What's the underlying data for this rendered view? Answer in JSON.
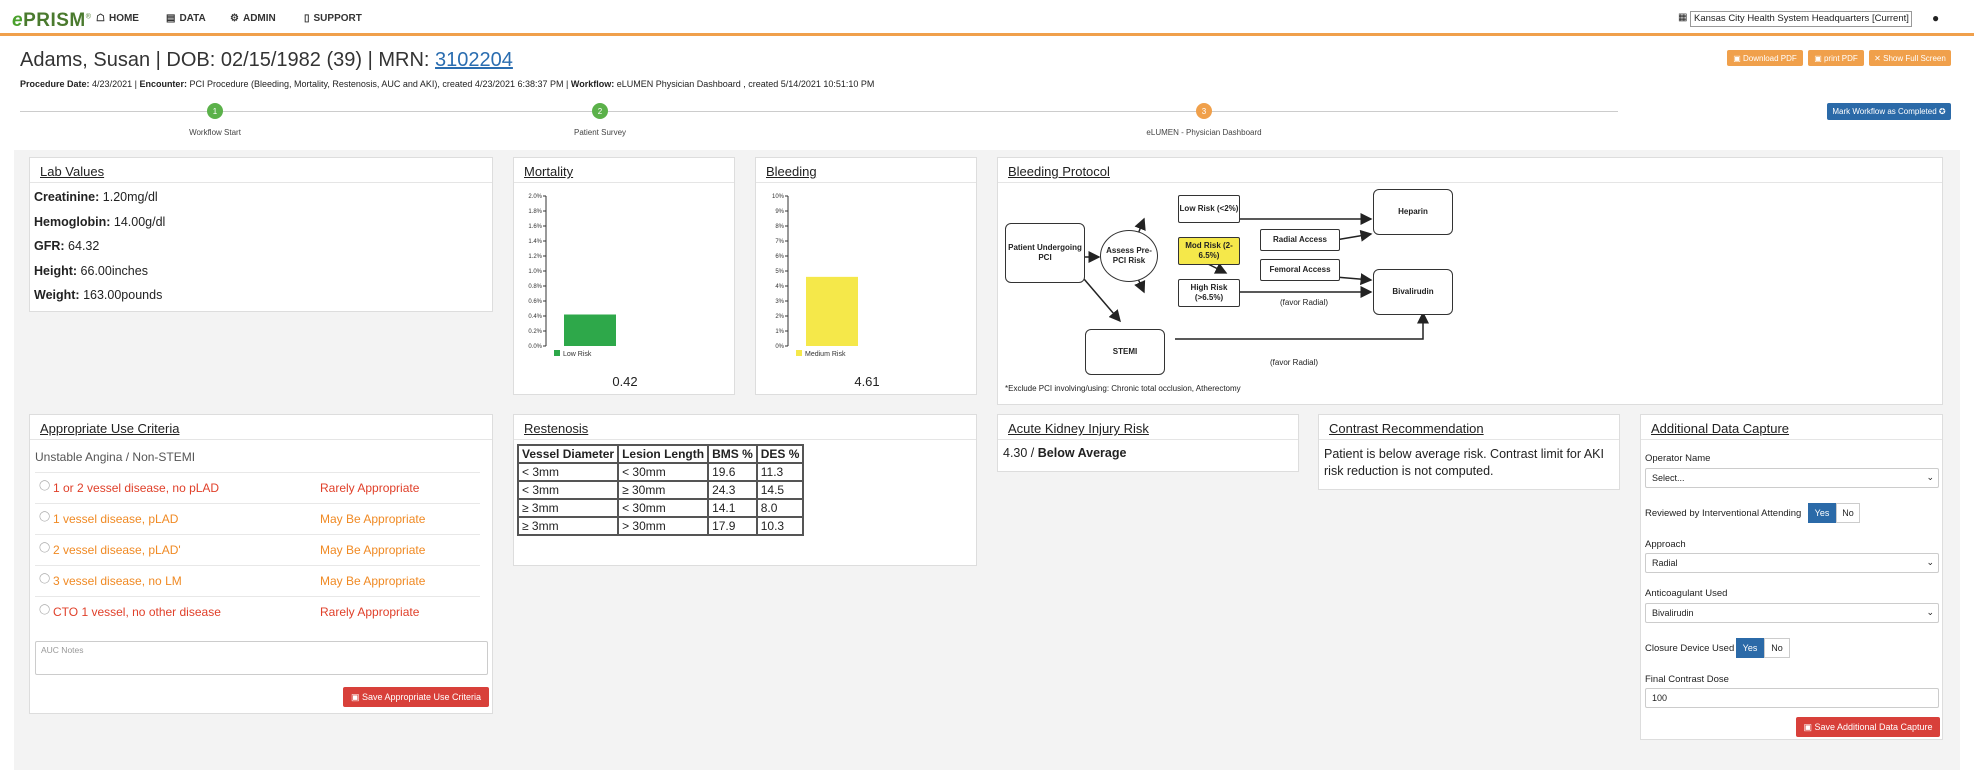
{
  "nav": {
    "logo": "PRISM",
    "logo_e": "e",
    "logo_tm": "®",
    "items": [
      {
        "label": "HOME",
        "icon": "home-icon"
      },
      {
        "label": "DATA",
        "icon": "book-icon"
      },
      {
        "label": "ADMIN",
        "icon": "gears-icon"
      },
      {
        "label": "SUPPORT",
        "icon": "doc-icon"
      }
    ],
    "org": "Kansas City Health System Headquarters [Current]"
  },
  "patient": {
    "title": "Adams, Susan | DOB: 02/15/1982 (39) | MRN: ",
    "mrn": "3102204",
    "pd_label": "Procedure Date:",
    "pd": "4/23/2021",
    "enc_label": "Encounter:",
    "enc": "PCI Procedure (Bleeding, Mortality, Restenosis, AUC and AKI), created 4/23/2021 6:38:37 PM",
    "wf_label": "Workflow:",
    "wf": "eLUMEN Physician Dashboard , created 5/14/2021 10:51:10 PM"
  },
  "actions": {
    "download": "Download PDF",
    "print": "print PDF",
    "fullscreen": "Show Full Screen",
    "mark": "Mark Workflow as Completed"
  },
  "workflow": [
    {
      "num": "1",
      "label": "Workflow Start",
      "color": "#5bb14a"
    },
    {
      "num": "2",
      "label": "Patient Survey",
      "color": "#5bb14a"
    },
    {
      "num": "3",
      "label": "eLUMEN - Physician Dashboard",
      "color": "#f0a04b"
    }
  ],
  "lab": {
    "title": "Lab Values",
    "items": [
      {
        "k": "Creatinine:",
        "v": "1.20mg/dl"
      },
      {
        "k": "Hemoglobin:",
        "v": "14.00g/dl"
      },
      {
        "k": "GFR:",
        "v": "64.32"
      },
      {
        "k": "Height:",
        "v": "66.00inches"
      },
      {
        "k": "Weight:",
        "v": "163.00pounds"
      }
    ]
  },
  "mortality": {
    "title": "Mortality",
    "value_label": "0.42",
    "chart_data": {
      "type": "bar",
      "categories": [
        "Low Risk"
      ],
      "values": [
        0.42
      ],
      "ylim": [
        0,
        2.0
      ],
      "ticks": [
        "0.0%",
        "0.2%",
        "0.4%",
        "0.6%",
        "0.8%",
        "1.0%",
        "1.2%",
        "1.4%",
        "1.6%",
        "1.8%",
        "2.0%"
      ],
      "color": "#2ea84a",
      "legend": "Low Risk"
    }
  },
  "bleeding": {
    "title": "Bleeding",
    "value_label": "4.61",
    "chart_data": {
      "type": "bar",
      "categories": [
        "Medium Risk"
      ],
      "values": [
        4.61
      ],
      "ylim": [
        0,
        10
      ],
      "ticks": [
        "0%",
        "1%",
        "2%",
        "3%",
        "4%",
        "5%",
        "6%",
        "7%",
        "8%",
        "9%",
        "10%"
      ],
      "color": "#f5e84a",
      "legend": "Medium Risk"
    }
  },
  "protocol": {
    "title": "Bleeding Protocol",
    "boxes": {
      "patient": "Patient Undergoing PCI",
      "assess": "Assess Pre-PCI Risk",
      "low": "Low Risk (<2%)",
      "mod": "Mod Risk (2-6.5%)",
      "high": "High Risk (>6.5%)",
      "radial": "Radial Access",
      "femoral": "Femoral Access",
      "heparin": "Heparin",
      "bival": "Bivalirudin",
      "stemi": "STEMI"
    },
    "favor1": "(favor Radial)",
    "favor2": "(favor Radial)",
    "note": "*Exclude PCI involving/using: Chronic total occlusion, Atherectomy",
    "highlight": "#f5e84a"
  },
  "auc": {
    "title": "Appropriate Use Criteria",
    "subtitle": "Unstable Angina / Non-STEMI",
    "rows": [
      {
        "name": "1 or 2 vessel disease, no pLAD",
        "app": "Rarely Appropriate",
        "cls": "red"
      },
      {
        "name": "1 vessel disease, pLAD",
        "app": "May Be Appropriate",
        "cls": "org"
      },
      {
        "name": "2 vessel disease, pLAD'",
        "app": "May Be Appropriate",
        "cls": "org"
      },
      {
        "name": "3 vessel disease, no LM",
        "app": "May Be Appropriate",
        "cls": "org"
      },
      {
        "name": "CTO 1 vessel, no other disease",
        "app": "Rarely Appropriate",
        "cls": "red"
      }
    ],
    "notes_placeholder": "AUC Notes",
    "save": "Save Appropriate Use Criteria"
  },
  "restenosis": {
    "title": "Restenosis",
    "headers": [
      "Vessel Diameter",
      "Lesion Length",
      "BMS %",
      "DES %"
    ],
    "rows": [
      [
        "< 3mm",
        "< 30mm",
        "19.6",
        "11.3"
      ],
      [
        "< 3mm",
        "≥ 30mm",
        "24.3",
        "14.5"
      ],
      [
        "≥ 3mm",
        "< 30mm",
        "14.1",
        "8.0"
      ],
      [
        "≥ 3mm",
        "> 30mm",
        "17.9",
        "10.3"
      ]
    ]
  },
  "aki": {
    "title": "Acute Kidney Injury Risk",
    "value": "4.30 / ",
    "level": "Below Average"
  },
  "contrast": {
    "title": "Contrast Recommendation",
    "text": "Patient is below average risk. Contrast limit for AKI risk reduction is not computed."
  },
  "adc": {
    "title": "Additional Data Capture",
    "operator_label": "Operator Name",
    "operator_value": "Select...",
    "reviewed_label": "Reviewed by Interventional Attending",
    "yes": "Yes",
    "no": "No",
    "approach_label": "Approach",
    "approach_value": "Radial",
    "anticoag_label": "Anticoagulant Used",
    "anticoag_value": "Bivalirudin",
    "closure_label": "Closure Device Used",
    "contrast_label": "Final Contrast Dose",
    "contrast_value": "100",
    "save": "Save Additional Data Capture"
  }
}
